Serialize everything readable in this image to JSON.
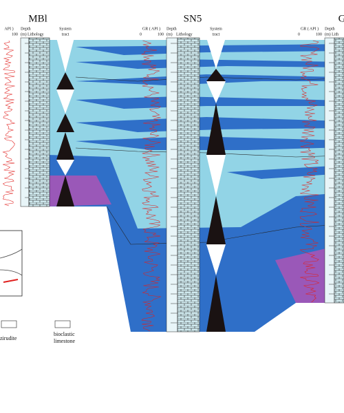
{
  "wells": [
    {
      "name": "MBl",
      "gr_header": "API )",
      "gr_max": "100",
      "depth_header": "Depth",
      "depth_unit": "(m)",
      "lithology_header": "Lithology",
      "system_tract_header": "System",
      "system_tract_header_2": "tract"
    },
    {
      "name": "SN5",
      "gr_header": "GR ( API )",
      "gr_min": "0",
      "gr_max": "100",
      "depth_header": "Depth",
      "depth_unit": "(m)",
      "lithology_header": "Lithology",
      "system_tract_header": "System",
      "system_tract_header_2": "tract"
    },
    {
      "name": "G",
      "gr_header": "GR ( API )",
      "gr_min": "0",
      "gr_max": "100",
      "depth_header": "Depth",
      "depth_unit": "(m) Lith"
    }
  ],
  "legend": {
    "items": [
      {
        "label": "zirudite"
      },
      {
        "label": "bioclastic",
        "label_2": "limestone"
      }
    ]
  }
}
